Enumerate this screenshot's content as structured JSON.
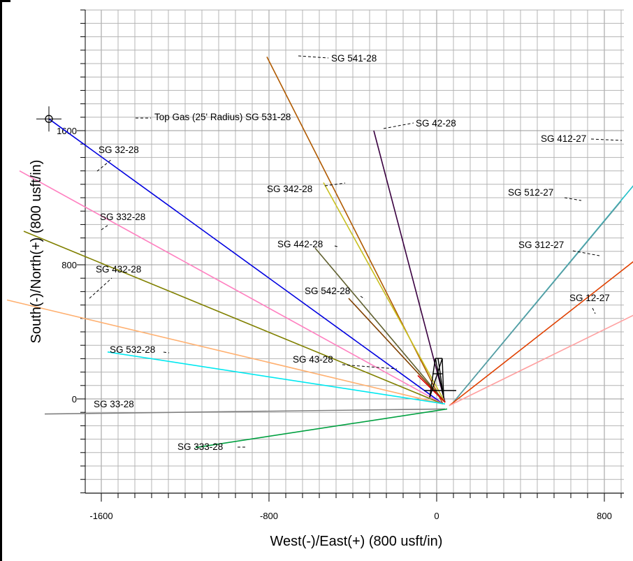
{
  "chart_data": {
    "type": "line",
    "xlabel": "West(-)/East(+) (800 usft/in)",
    "ylabel": "South(-)/North(+) (800 usft/in)",
    "xlim": [
      -2080,
      1120
    ],
    "ylim": [
      -580,
      2330
    ],
    "x_ticks": [
      -1600,
      -800,
      0,
      800
    ],
    "y_ticks": [
      0,
      800,
      1600
    ],
    "grid": true,
    "target": {
      "label": "Top Gas (25' Radius) SG 531-28",
      "x": -1850,
      "y": 1670
    },
    "series": [
      {
        "name": "SG 541-28",
        "color": "#b05a00",
        "x": [
          30,
          -810
        ],
        "y": [
          -30,
          2040
        ]
      },
      {
        "name": "SG 531-28",
        "color": "#0000e0",
        "x": [
          30,
          -1850
        ],
        "y": [
          -30,
          1670
        ]
      },
      {
        "name": "SG 42-28",
        "color": "#3a0040",
        "x": [
          40,
          -300
        ],
        "y": [
          -20,
          1600
        ]
      },
      {
        "name": "SG 412-27",
        "color": "#20c0c8",
        "x": [
          80,
          1110
        ],
        "y": [
          -20,
          1530
        ]
      },
      {
        "name": "SG 32-28",
        "color": "#ff80c0",
        "x": [
          30,
          -1990
        ],
        "y": [
          -30,
          1360
        ]
      },
      {
        "name": "SG 342-28",
        "color": "#c8c020",
        "x": [
          40,
          -540
        ],
        "y": [
          -20,
          1290
        ]
      },
      {
        "name": "SG 512-27",
        "color": "#5a9aa0",
        "x": [
          80,
          880
        ],
        "y": [
          -20,
          1180
        ]
      },
      {
        "name": "SG 332-28",
        "color": "#808000",
        "x": [
          30,
          -1970
        ],
        "y": [
          -30,
          1000
        ]
      },
      {
        "name": "SG 442-28",
        "color": "#606030",
        "x": [
          40,
          -580
        ],
        "y": [
          -20,
          900
        ]
      },
      {
        "name": "SG 312-27",
        "color": "#e04000",
        "x": [
          60,
          970
        ],
        "y": [
          -40,
          850
        ]
      },
      {
        "name": "SG 432-28",
        "color": "#ffb070",
        "x": [
          30,
          -2050
        ],
        "y": [
          -30,
          590
        ]
      },
      {
        "name": "SG 542-28",
        "color": "#804000",
        "x": [
          40,
          -420
        ],
        "y": [
          -20,
          600
        ]
      },
      {
        "name": "SG 12-27",
        "color": "#ffa0a0",
        "x": [
          60,
          940
        ],
        "y": [
          -40,
          500
        ]
      },
      {
        "name": "SG 532-28",
        "color": "#00e8f0",
        "x": [
          40,
          -1570
        ],
        "y": [
          -30,
          280
        ]
      },
      {
        "name": "SG 43-28",
        "color": "#e00000",
        "x": [
          40,
          -90
        ],
        "y": [
          -20,
          140
        ]
      },
      {
        "name": "SG 33-28",
        "color": "#808080",
        "x": [
          40,
          -1870
        ],
        "y": [
          -60,
          -90
        ]
      },
      {
        "name": "SG 333-28",
        "color": "#00a040",
        "x": [
          50,
          -1150
        ],
        "y": [
          -60,
          -290
        ]
      }
    ]
  },
  "labels": [
    {
      "text": "SG 541-28"
    },
    {
      "text": "Top Gas (25' Radius) SG 531-28"
    },
    {
      "text": "SG 42-28"
    },
    {
      "text": "SG 412-27"
    },
    {
      "text": "SG 32-28"
    },
    {
      "text": "SG 342-28"
    },
    {
      "text": "SG 512-27"
    },
    {
      "text": "SG 332-28"
    },
    {
      "text": "SG 442-28"
    },
    {
      "text": "SG 312-27"
    },
    {
      "text": "SG 432-28"
    },
    {
      "text": "SG 542-28"
    },
    {
      "text": "SG 12-27"
    },
    {
      "text": "SG 532-28"
    },
    {
      "text": "SG 43-28"
    },
    {
      "text": "SG 33-28"
    },
    {
      "text": "SG 333-28"
    }
  ]
}
